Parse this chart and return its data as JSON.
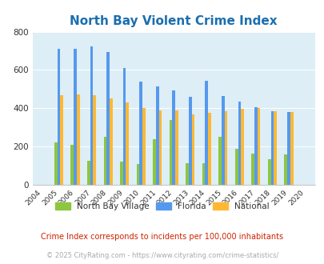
{
  "title": "North Bay Violent Crime Index",
  "years": [
    2004,
    2005,
    2006,
    2007,
    2008,
    2009,
    2010,
    2011,
    2012,
    2013,
    2014,
    2015,
    2016,
    2017,
    2018,
    2019,
    2020
  ],
  "north_bay": [
    0,
    220,
    208,
    125,
    250,
    120,
    110,
    238,
    340,
    112,
    112,
    250,
    190,
    165,
    133,
    158,
    0
  ],
  "florida": [
    0,
    712,
    712,
    722,
    693,
    612,
    540,
    515,
    492,
    458,
    543,
    462,
    433,
    407,
    385,
    382,
    0
  ],
  "national": [
    0,
    469,
    474,
    468,
    453,
    429,
    402,
    388,
    388,
    368,
    377,
    383,
    398,
    403,
    385,
    381,
    0
  ],
  "color_nbv": "#8dc63f",
  "color_fl": "#5599ee",
  "color_nat": "#ffb833",
  "plot_bg": "#ddeef6",
  "ylim": [
    0,
    800
  ],
  "yticks": [
    0,
    200,
    400,
    600,
    800
  ],
  "footnote1": "Crime Index corresponds to incidents per 100,000 inhabitants",
  "footnote2": "© 2025 CityRating.com - https://www.cityrating.com/crime-statistics/",
  "legend_labels": [
    "North Bay Village",
    "Florida",
    "National"
  ]
}
